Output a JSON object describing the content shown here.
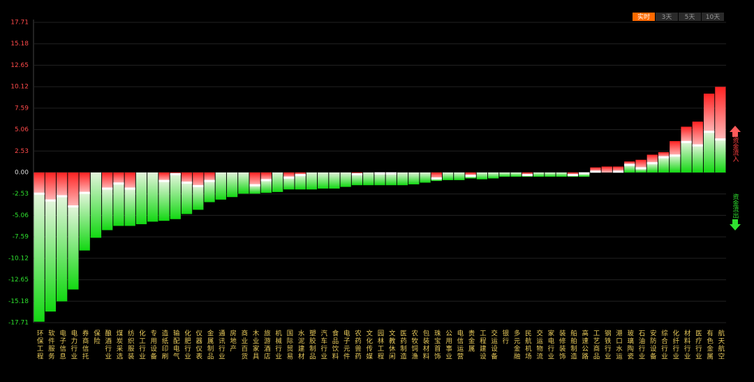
{
  "chart_data": {
    "type": "bar",
    "stacked": true,
    "tabs": [
      "实时",
      "3天",
      "5天",
      "10天"
    ],
    "active_tab": 0,
    "categories": [
      "环保工程",
      "软件服务",
      "电子信息",
      "电力行业",
      "券商信托",
      "保险",
      "酿酒行业",
      "煤炭采选",
      "纺织服装",
      "化工行业",
      "专用设备",
      "造纸印刷",
      "输配电气",
      "化肥行业",
      "仪器仪表",
      "金属制品",
      "通讯行业",
      "房地产",
      "商业百货",
      "木业家具",
      "旅游酒店",
      "机械行业",
      "国际贸易",
      "水泥建材",
      "塑胶制品",
      "汽车行业",
      "食品饮料",
      "电子元件",
      "农药兽药",
      "文化传媒",
      "园林工程",
      "文教休闲",
      "医药制造",
      "农牧饲渔",
      "包装材料",
      "珠宝首饰",
      "公用事业",
      "电信运营",
      "贵金属",
      "工程建设",
      "交运设备",
      "银行",
      "多元金融",
      "民航机场",
      "交运物流",
      "家电行业",
      "装修装饰",
      "船舶制造",
      "高速公路",
      "工艺商品",
      "钢铁行业",
      "港口水运",
      "玻璃陶瓷",
      "石油行业",
      "安防设备",
      "综合行业",
      "化纤行业",
      "材料行业",
      "医疗行业",
      "有色金属",
      "航天航空"
    ],
    "series": [
      {
        "name": "资金流入",
        "color": "#ff2a2a",
        "values": [
          -2.5,
          -3.3,
          -2.8,
          -4.0,
          -2.4,
          0,
          -1.9,
          -1.3,
          -1.9,
          0,
          0,
          -1.0,
          -0.2,
          -1.2,
          -1.6,
          -1.0,
          0,
          0,
          0,
          -1.5,
          -0.9,
          0,
          -0.6,
          -0.3,
          0,
          0,
          0,
          0,
          -0.2,
          0,
          -0.1,
          -0.1,
          0,
          0,
          0,
          -0.7,
          0,
          0,
          -0.4,
          0,
          0,
          0,
          0,
          -0.3,
          0,
          0,
          0,
          -0.3,
          -0.1,
          0.5,
          0.7,
          0.6,
          0.4,
          1.0,
          1.0,
          0.6,
          1.7,
          1.8,
          2.8,
          4.5,
          6.2
        ]
      },
      {
        "name": "资金流出",
        "color": "#1fd81f",
        "values": [
          -15.1,
          -13.1,
          -12.4,
          -9.8,
          -6.8,
          -7.7,
          -4.9,
          -5.0,
          -4.4,
          -6.1,
          -5.8,
          -4.7,
          -5.3,
          -3.7,
          -2.8,
          -2.5,
          -3.2,
          -2.9,
          -2.5,
          -1.0,
          -1.5,
          -2.3,
          -1.4,
          -1.7,
          -2.0,
          -1.9,
          -1.9,
          -1.7,
          -1.3,
          -1.5,
          -1.4,
          -1.4,
          -1.5,
          -1.4,
          -1.2,
          -0.3,
          -0.9,
          -0.9,
          -0.3,
          -0.8,
          -0.7,
          -0.5,
          -0.5,
          -0.2,
          -0.5,
          -0.5,
          -0.5,
          -0.2,
          -0.4,
          0.1,
          0,
          0.1,
          0.9,
          0.5,
          1.1,
          1.8,
          2.0,
          3.6,
          3.2,
          4.8,
          3.9
        ]
      }
    ],
    "ylim": [
      -17.71,
      17.71
    ],
    "yticks": [
      17.71,
      15.18,
      12.65,
      10.12,
      7.59,
      5.06,
      2.53,
      {
        "value": 0,
        "label": "0.00"
      },
      -2.53,
      -5.06,
      -7.59,
      -10.12,
      -12.65,
      -15.18,
      -17.71
    ],
    "grid": true
  }
}
